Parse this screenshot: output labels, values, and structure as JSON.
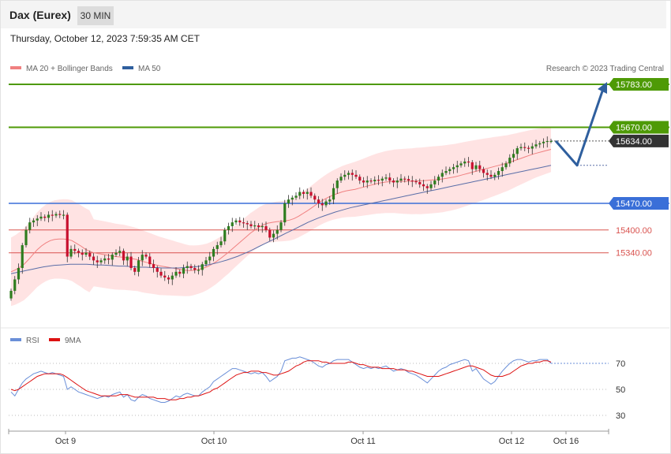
{
  "header": {
    "title": "Dax (Eurex)",
    "timeframe": "30 MIN",
    "datetime": "Thursday, October 12, 2023 7:59:35 AM CET"
  },
  "legend": {
    "ma20_label": "MA 20 + Bollinger Bands",
    "ma50_label": "MA 50",
    "copyright": "Research © 2023 Trading Central",
    "rsi_label": "RSI",
    "ma9_label": "9MA"
  },
  "colors": {
    "up_candle": "#2e7d1f",
    "down_candle": "#c8102e",
    "resistance": "#4e9a06",
    "support": "#3a6fd8",
    "pivot_red": "#d9534f",
    "ma20": "#f08080",
    "ma50": "#5a6ea8",
    "bands": "#ffe0e0",
    "rsi": "#6a8fd8",
    "rsi_ma": "#dd1111",
    "arrow": "#2f5f9e",
    "current": "#333333"
  },
  "chart_data": [
    {
      "type": "candlestick",
      "x_ticks": [
        "Oct 9",
        "Oct 10",
        "Oct 11",
        "Oct 12",
        "Oct 16"
      ],
      "levels": [
        {
          "value": 15783.0,
          "label": "15783.00",
          "kind": "resistance"
        },
        {
          "value": 15670.0,
          "label": "15670.00",
          "kind": "resistance"
        },
        {
          "value": 15634.0,
          "label": "15634.00",
          "kind": "current"
        },
        {
          "value": 15470.0,
          "label": "15470.00",
          "kind": "support"
        },
        {
          "value": 15400.0,
          "label": "15400.00",
          "kind": "pivot"
        },
        {
          "value": 15340.0,
          "label": "15340.00",
          "kind": "pivot"
        }
      ],
      "close": [
        15240,
        15270,
        15300,
        15360,
        15400,
        15420,
        15425,
        15430,
        15435,
        15432,
        15440,
        15438,
        15442,
        15440,
        15440,
        15330,
        15350,
        15345,
        15340,
        15335,
        15340,
        15330,
        15320,
        15315,
        15320,
        15325,
        15322,
        15335,
        15340,
        15345,
        15320,
        15330,
        15300,
        15290,
        15320,
        15335,
        15330,
        15310,
        15300,
        15290,
        15280,
        15275,
        15270,
        15280,
        15290,
        15285,
        15300,
        15305,
        15300,
        15295,
        15295,
        15310,
        15320,
        15330,
        15350,
        15360,
        15370,
        15400,
        15410,
        15420,
        15425,
        15420,
        15418,
        15415,
        15410,
        15412,
        15408,
        15410,
        15400,
        15380,
        15390,
        15400,
        15420,
        15470,
        15480,
        15485,
        15490,
        15500,
        15495,
        15500,
        15490,
        15480,
        15470,
        15465,
        15475,
        15480,
        15510,
        15530,
        15540,
        15545,
        15550,
        15545,
        15540,
        15530,
        15525,
        15530,
        15528,
        15532,
        15530,
        15535,
        15538,
        15530,
        15525,
        15530,
        15535,
        15534,
        15530,
        15528,
        15526,
        15520,
        15515,
        15510,
        15520,
        15530,
        15540,
        15550,
        15555,
        15560,
        15565,
        15570,
        15575,
        15580,
        15578,
        15560,
        15570,
        15560,
        15550,
        15545,
        15540,
        15545,
        15555,
        15565,
        15575,
        15590,
        15600,
        15615,
        15618,
        15616,
        15614,
        15620,
        15625,
        15628,
        15632,
        15634,
        15634
      ],
      "ma20": [
        15290,
        15295,
        15302,
        15310,
        15322,
        15335,
        15348,
        15358,
        15366,
        15372,
        15375,
        15376,
        15376,
        15375,
        15372,
        15365,
        15358,
        15350,
        15344,
        15340,
        15338,
        15336,
        15334,
        15332,
        15330,
        15329,
        15328,
        15326,
        15324,
        15322,
        15318,
        15315,
        15312,
        15309,
        15306,
        15304,
        15302,
        15300,
        15298,
        15296,
        15294,
        15293,
        15294,
        15296,
        15299,
        15303,
        15309,
        15316,
        15324,
        15333,
        15342,
        15352,
        15362,
        15372,
        15382,
        15392,
        15400,
        15408,
        15414,
        15418,
        15420,
        15422,
        15423,
        15424,
        15426,
        15430,
        15436,
        15443,
        15450,
        15458,
        15466,
        15474,
        15481,
        15487,
        15492,
        15496,
        15500,
        15503,
        15505,
        15507,
        15510,
        15513,
        15516,
        15519,
        15522,
        15524,
        15526,
        15527,
        15528,
        15528,
        15528,
        15528,
        15528,
        15529,
        15529,
        15530,
        15531,
        15532,
        15533,
        15534,
        15536,
        15538,
        15540,
        15543,
        15546,
        15549,
        15552,
        15555,
        15558,
        15561,
        15564,
        15567,
        15570,
        15573,
        15576,
        15580,
        15584,
        15588,
        15592,
        15596,
        15600,
        15603,
        15606,
        15609,
        15612
      ],
      "ma50": [
        15285,
        15288,
        15291,
        15294,
        15297,
        15300,
        15303,
        15305,
        15307,
        15308,
        15309,
        15310,
        15310,
        15310,
        15310,
        15309,
        15308,
        15308,
        15307,
        15306,
        15305,
        15305,
        15304,
        15303,
        15302,
        15302,
        15301,
        15301,
        15300,
        15300,
        15300,
        15300,
        15301,
        15302,
        15303,
        15305,
        15307,
        15310,
        15313,
        15317,
        15321,
        15326,
        15331,
        15337,
        15343,
        15350,
        15357,
        15364,
        15371,
        15378,
        15385,
        15392,
        15399,
        15406,
        15413,
        15420,
        15426,
        15432,
        15437,
        15442,
        15447,
        15451,
        15455,
        15459,
        15462,
        15465,
        15468,
        15471,
        15474,
        15477,
        15480,
        15483,
        15486,
        15489,
        15492,
        15495,
        15498,
        15501,
        15504,
        15507,
        15510,
        15513,
        15516,
        15519,
        15522,
        15525,
        15528,
        15531,
        15534,
        15537,
        15540,
        15543,
        15546,
        15549,
        15552,
        15555,
        15558,
        15561,
        15564,
        15567,
        15570
      ],
      "projection": [
        {
          "step": 0,
          "value": 15634
        },
        {
          "step": 1,
          "value": 15570
        },
        {
          "step": 2,
          "value": 15783
        }
      ],
      "y_range": [
        15180,
        15830
      ]
    },
    {
      "type": "line",
      "name_series": [
        "RSI",
        "9MA"
      ],
      "y_ticks": [
        70,
        50,
        30
      ],
      "y_range": [
        20,
        80
      ],
      "rsi": [
        48,
        45,
        50,
        55,
        58,
        60,
        62,
        63,
        64,
        63,
        62,
        63,
        62,
        61,
        60,
        50,
        52,
        50,
        48,
        47,
        46,
        45,
        44,
        43,
        44,
        45,
        44,
        46,
        47,
        48,
        44,
        46,
        42,
        41,
        44,
        46,
        45,
        43,
        42,
        41,
        40,
        40,
        41,
        43,
        45,
        44,
        46,
        47,
        46,
        45,
        45,
        48,
        50,
        52,
        56,
        58,
        60,
        62,
        64,
        66,
        66,
        65,
        64,
        63,
        62,
        63,
        62,
        63,
        60,
        56,
        58,
        60,
        64,
        72,
        73,
        74,
        74,
        75,
        74,
        73,
        72,
        70,
        68,
        67,
        69,
        70,
        72,
        73,
        73,
        73,
        73,
        71,
        69,
        67,
        66,
        67,
        66,
        67,
        66,
        67,
        68,
        66,
        64,
        65,
        66,
        65,
        63,
        62,
        61,
        59,
        57,
        55,
        58,
        61,
        64,
        66,
        67,
        69,
        70,
        71,
        72,
        73,
        72,
        64,
        66,
        62,
        58,
        56,
        54,
        56,
        60,
        64,
        67,
        70,
        72,
        73,
        73,
        72,
        71,
        72,
        72,
        73,
        73,
        73,
        70
      ],
      "rsi_ma": [
        50,
        49,
        50,
        52,
        54,
        56,
        58,
        60,
        61,
        62,
        62,
        62,
        62,
        62,
        61,
        59,
        57,
        55,
        53,
        51,
        49,
        48,
        47,
        46,
        45,
        45,
        45,
        45,
        45,
        46,
        46,
        46,
        45,
        44,
        44,
        44,
        44,
        44,
        44,
        43,
        43,
        43,
        42,
        42,
        42,
        43,
        43,
        44,
        44,
        45,
        45,
        46,
        47,
        48,
        50,
        51,
        53,
        55,
        57,
        59,
        61,
        62,
        63,
        63,
        64,
        64,
        64,
        63,
        63,
        62,
        61,
        61,
        62,
        63,
        64,
        66,
        68,
        69,
        71,
        72,
        72,
        72,
        72,
        71,
        71,
        70,
        70,
        70,
        70,
        70,
        71,
        71,
        70,
        69,
        69,
        68,
        67,
        67,
        67,
        66,
        66,
        66,
        66,
        65,
        65,
        65,
        64,
        64,
        63,
        62,
        61,
        60,
        60,
        60,
        60,
        61,
        62,
        63,
        64,
        65,
        66,
        67,
        68,
        68,
        67,
        66,
        65,
        63,
        61,
        60,
        60,
        60,
        61,
        62,
        64,
        66,
        68,
        69,
        70,
        70,
        71,
        71,
        72,
        72,
        71
      ]
    }
  ]
}
